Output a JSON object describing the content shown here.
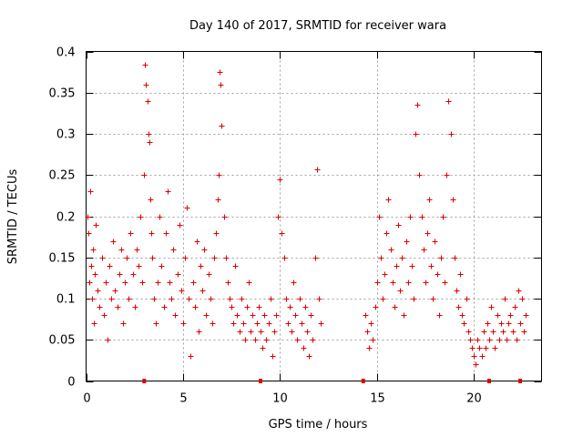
{
  "chart_data": {
    "type": "scatter",
    "title": "Day 140 of 2017, SRMTID for receiver wara",
    "xlabel": "GPS time / hours",
    "ylabel": "SRMTID / TECUs",
    "xlim": [
      0,
      23.5
    ],
    "ylim": [
      0,
      0.4
    ],
    "xticks": [
      0,
      5,
      10,
      15,
      20
    ],
    "xtick_labels": [
      "0",
      "5",
      "10",
      "15",
      "20"
    ],
    "yticks": [
      0,
      0.05,
      0.1,
      0.15,
      0.2,
      0.25,
      0.3,
      0.35,
      0.4
    ],
    "ytick_labels": [
      "0",
      "0.05",
      "0.1",
      "0.15",
      "0.2",
      "0.25",
      "0.3",
      "0.35",
      "0.4"
    ],
    "grid": true,
    "marker": "+",
    "color": "#e00000",
    "gap_markers_x": [
      3.0,
      9.0,
      14.3,
      20.8,
      22.4
    ],
    "series": [
      {
        "name": "SRMTID",
        "x": [
          0.05,
          0.1,
          0.15,
          0.2,
          0.25,
          0.3,
          0.35,
          0.4,
          0.45,
          0.5,
          0.6,
          0.7,
          0.8,
          0.9,
          1.0,
          1.1,
          1.2,
          1.3,
          1.4,
          1.5,
          1.6,
          1.7,
          1.8,
          1.9,
          2.0,
          2.1,
          2.2,
          2.3,
          2.4,
          2.5,
          2.6,
          2.7,
          2.8,
          2.9,
          3.0,
          3.05,
          3.1,
          3.15,
          3.2,
          3.25,
          3.3,
          3.35,
          3.4,
          3.5,
          3.6,
          3.7,
          3.8,
          3.9,
          4.0,
          4.1,
          4.2,
          4.3,
          4.4,
          4.5,
          4.6,
          4.7,
          4.8,
          4.9,
          5.0,
          5.1,
          5.2,
          5.3,
          5.4,
          5.5,
          5.6,
          5.7,
          5.8,
          5.9,
          6.0,
          6.1,
          6.2,
          6.3,
          6.4,
          6.5,
          6.6,
          6.7,
          6.8,
          6.85,
          6.9,
          6.95,
          7.0,
          7.1,
          7.2,
          7.3,
          7.4,
          7.5,
          7.6,
          7.7,
          7.8,
          7.9,
          8.0,
          8.1,
          8.2,
          8.3,
          8.4,
          8.5,
          8.6,
          8.7,
          8.8,
          8.9,
          9.0,
          9.1,
          9.2,
          9.3,
          9.4,
          9.5,
          9.6,
          9.7,
          9.8,
          9.9,
          10.0,
          10.1,
          10.2,
          10.3,
          10.4,
          10.5,
          10.6,
          10.7,
          10.8,
          10.9,
          11.0,
          11.1,
          11.2,
          11.3,
          11.4,
          11.5,
          11.6,
          11.7,
          11.8,
          11.9,
          12.0,
          12.1,
          14.4,
          14.5,
          14.6,
          14.7,
          14.8,
          14.9,
          15.0,
          15.1,
          15.2,
          15.3,
          15.4,
          15.5,
          15.6,
          15.7,
          15.8,
          15.9,
          16.0,
          16.1,
          16.2,
          16.3,
          16.4,
          16.5,
          16.6,
          16.7,
          16.8,
          16.9,
          17.0,
          17.1,
          17.2,
          17.3,
          17.4,
          17.5,
          17.6,
          17.7,
          17.8,
          17.9,
          18.0,
          18.1,
          18.2,
          18.3,
          18.4,
          18.5,
          18.6,
          18.7,
          18.8,
          18.9,
          19.0,
          19.1,
          19.2,
          19.3,
          19.4,
          19.5,
          19.6,
          19.7,
          19.8,
          19.9,
          20.0,
          20.1,
          20.2,
          20.3,
          20.4,
          20.5,
          20.6,
          20.7,
          20.8,
          20.9,
          21.0,
          21.1,
          21.2,
          21.3,
          21.4,
          21.5,
          21.6,
          21.7,
          21.8,
          21.9,
          22.0,
          22.1,
          22.2,
          22.3,
          22.4,
          22.5,
          22.6,
          22.7
        ],
        "y": [
          0.2,
          0.18,
          0.12,
          0.23,
          0.14,
          0.1,
          0.16,
          0.07,
          0.13,
          0.19,
          0.11,
          0.09,
          0.15,
          0.08,
          0.12,
          0.05,
          0.14,
          0.1,
          0.17,
          0.11,
          0.09,
          0.13,
          0.16,
          0.07,
          0.12,
          0.15,
          0.1,
          0.18,
          0.13,
          0.09,
          0.16,
          0.14,
          0.2,
          0.12,
          0.25,
          0.384,
          0.36,
          0.34,
          0.3,
          0.29,
          0.22,
          0.18,
          0.15,
          0.1,
          0.07,
          0.12,
          0.2,
          0.14,
          0.09,
          0.18,
          0.23,
          0.12,
          0.1,
          0.16,
          0.08,
          0.13,
          0.19,
          0.11,
          0.07,
          0.15,
          0.21,
          0.1,
          0.03,
          0.12,
          0.09,
          0.17,
          0.06,
          0.14,
          0.11,
          0.16,
          0.08,
          0.13,
          0.1,
          0.07,
          0.15,
          0.18,
          0.22,
          0.25,
          0.375,
          0.36,
          0.31,
          0.2,
          0.15,
          0.12,
          0.1,
          0.09,
          0.07,
          0.14,
          0.08,
          0.06,
          0.1,
          0.07,
          0.05,
          0.09,
          0.12,
          0.06,
          0.08,
          0.05,
          0.07,
          0.09,
          0.06,
          0.04,
          0.08,
          0.05,
          0.07,
          0.1,
          0.03,
          0.06,
          0.08,
          0.2,
          0.245,
          0.18,
          0.15,
          0.1,
          0.07,
          0.09,
          0.06,
          0.12,
          0.08,
          0.05,
          0.1,
          0.07,
          0.04,
          0.09,
          0.06,
          0.03,
          0.08,
          0.05,
          0.15,
          0.257,
          0.1,
          0.07,
          0.08,
          0.06,
          0.04,
          0.07,
          0.05,
          0.09,
          0.12,
          0.2,
          0.15,
          0.1,
          0.13,
          0.18,
          0.22,
          0.16,
          0.12,
          0.09,
          0.14,
          0.19,
          0.11,
          0.15,
          0.08,
          0.17,
          0.12,
          0.2,
          0.14,
          0.1,
          0.3,
          0.335,
          0.25,
          0.2,
          0.16,
          0.12,
          0.18,
          0.22,
          0.14,
          0.1,
          0.17,
          0.13,
          0.08,
          0.15,
          0.2,
          0.12,
          0.25,
          0.34,
          0.3,
          0.22,
          0.15,
          0.11,
          0.09,
          0.13,
          0.08,
          0.07,
          0.1,
          0.06,
          0.05,
          0.04,
          0.03,
          0.02,
          0.05,
          0.04,
          0.03,
          0.06,
          0.04,
          0.07,
          0.05,
          0.09,
          0.06,
          0.04,
          0.08,
          0.05,
          0.07,
          0.06,
          0.1,
          0.05,
          0.07,
          0.08,
          0.06,
          0.09,
          0.05,
          0.11,
          0.07,
          0.1,
          0.06,
          0.08
        ]
      }
    ]
  }
}
